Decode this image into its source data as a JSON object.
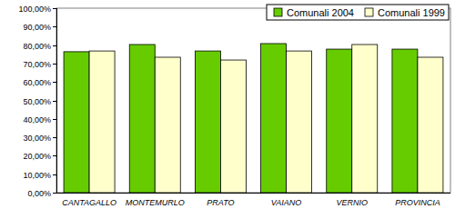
{
  "chart_data": {
    "type": "bar",
    "categories": [
      "CANTAGALLO",
      "MONTEMURLO",
      "PRATO",
      "VAIANO",
      "VERNIO",
      "PROVINCIA"
    ],
    "series": [
      {
        "name": "Comunali 2004",
        "color": "#66cc00",
        "values": [
          76.4,
          80.3,
          76.8,
          80.8,
          77.8,
          77.8
        ]
      },
      {
        "name": "Comunali 1999",
        "color": "#ffffcc",
        "values": [
          76.8,
          73.4,
          71.9,
          76.8,
          80.3,
          73.4
        ]
      }
    ],
    "ylim": [
      0,
      100
    ],
    "yticks": [
      {
        "value": 0,
        "label": "0,00%"
      },
      {
        "value": 10,
        "label": "10,00%"
      },
      {
        "value": 20,
        "label": "20,00%"
      },
      {
        "value": 30,
        "label": "30,00%"
      },
      {
        "value": 40,
        "label": "40,00%"
      },
      {
        "value": 50,
        "label": "50,00%"
      },
      {
        "value": 60,
        "label": "60,00%"
      },
      {
        "value": 70,
        "label": "70,00%"
      },
      {
        "value": 80,
        "label": "80,00%"
      },
      {
        "value": 90,
        "label": "90,00%"
      },
      {
        "value": 100,
        "label": "100,00%"
      }
    ],
    "grid": false,
    "legend": "upper right"
  }
}
